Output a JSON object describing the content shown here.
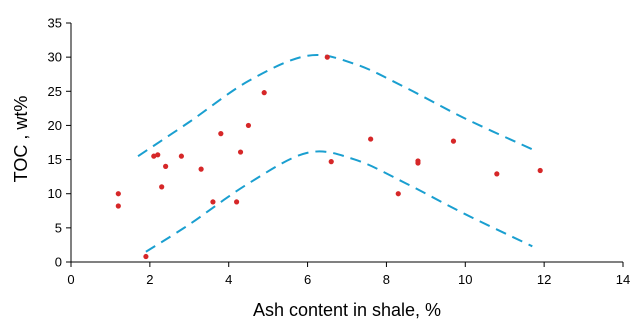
{
  "chart_data": {
    "type": "scatter",
    "title": "",
    "xlabel": "Ash content in shale, %",
    "ylabel": "TOC , wt%",
    "xlim": [
      0,
      14
    ],
    "ylim": [
      0,
      35
    ],
    "x_ticks": [
      "0",
      "2",
      "4",
      "6",
      "8",
      "10",
      "12",
      "14"
    ],
    "y_ticks": [
      "0",
      "5",
      "10",
      "15",
      "20",
      "25",
      "30",
      "35"
    ],
    "grid": false,
    "legend": "none",
    "colors": {
      "points": "#d62728",
      "envelope": "#1a9fd0",
      "axis": "#000000"
    },
    "series": [
      {
        "points": [
          [
            1.2,
            10.0
          ],
          [
            1.2,
            8.2
          ],
          [
            1.9,
            0.8
          ],
          [
            2.1,
            15.5
          ],
          [
            2.2,
            15.7
          ],
          [
            2.3,
            11.0
          ],
          [
            2.4,
            14.0
          ],
          [
            2.8,
            15.5
          ],
          [
            3.3,
            13.6
          ],
          [
            3.6,
            8.8
          ],
          [
            3.8,
            18.8
          ],
          [
            4.2,
            8.8
          ],
          [
            4.3,
            16.1
          ],
          [
            4.5,
            20.0
          ],
          [
            4.9,
            24.8
          ],
          [
            6.5,
            30.0
          ],
          [
            6.6,
            14.7
          ],
          [
            7.6,
            18.0
          ],
          [
            8.3,
            10.0
          ],
          [
            8.8,
            14.8
          ],
          [
            8.8,
            14.5
          ],
          [
            9.7,
            17.7
          ],
          [
            10.8,
            12.9
          ],
          [
            11.9,
            13.4
          ]
        ]
      }
    ],
    "envelope_curves": [
      {
        "x": [
          1.7,
          3.0,
          4.5,
          6.0,
          7.2,
          8.5,
          10.0,
          11.7
        ],
        "y": [
          15.5,
          20.5,
          26.5,
          30.2,
          29.0,
          25.5,
          21.0,
          16.5
        ]
      },
      {
        "x": [
          1.9,
          3.0,
          4.5,
          6.0,
          7.2,
          8.5,
          10.0,
          11.7
        ],
        "y": [
          1.5,
          5.5,
          11.5,
          16.0,
          15.0,
          11.5,
          7.0,
          2.3
        ]
      }
    ]
  }
}
